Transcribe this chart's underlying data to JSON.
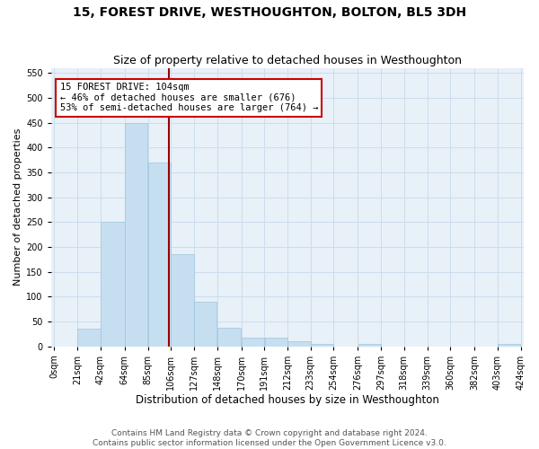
{
  "title": "15, FOREST DRIVE, WESTHOUGHTON, BOLTON, BL5 3DH",
  "subtitle": "Size of property relative to detached houses in Westhoughton",
  "xlabel": "Distribution of detached houses by size in Westhoughton",
  "ylabel": "Number of detached properties",
  "footer1": "Contains HM Land Registry data © Crown copyright and database right 2024.",
  "footer2": "Contains public sector information licensed under the Open Government Licence v3.0.",
  "bin_edges": [
    0,
    21,
    42,
    64,
    85,
    106,
    127,
    148,
    170,
    191,
    212,
    233,
    254,
    276,
    297,
    318,
    339,
    360,
    382,
    403,
    424
  ],
  "bar_heights": [
    0,
    35,
    250,
    450,
    370,
    185,
    90,
    37,
    18,
    18,
    10,
    4,
    0,
    5,
    0,
    0,
    0,
    0,
    0,
    5
  ],
  "bar_color": "#c6dff0",
  "bar_edge_color": "#a0c4dd",
  "property_size": 104,
  "vline_color": "#990000",
  "annotation_line1": "15 FOREST DRIVE: 104sqm",
  "annotation_line2": "← 46% of detached houses are smaller (676)",
  "annotation_line3": "53% of semi-detached houses are larger (764) →",
  "annotation_box_facecolor": "#ffffff",
  "annotation_box_edgecolor": "#cc0000",
  "ylim": [
    0,
    560
  ],
  "yticks": [
    0,
    50,
    100,
    150,
    200,
    250,
    300,
    350,
    400,
    450,
    500,
    550
  ],
  "tick_labels": [
    "0sqm",
    "21sqm",
    "42sqm",
    "64sqm",
    "85sqm",
    "106sqm",
    "127sqm",
    "148sqm",
    "170sqm",
    "191sqm",
    "212sqm",
    "233sqm",
    "254sqm",
    "276sqm",
    "297sqm",
    "318sqm",
    "339sqm",
    "360sqm",
    "382sqm",
    "403sqm",
    "424sqm"
  ],
  "grid_color": "#ccdded",
  "bg_color": "#e8f0f8",
  "title_fontsize": 10,
  "subtitle_fontsize": 9,
  "xlabel_fontsize": 8.5,
  "ylabel_fontsize": 8,
  "tick_fontsize": 7,
  "annotation_fontsize": 7.5,
  "footer_fontsize": 6.5
}
